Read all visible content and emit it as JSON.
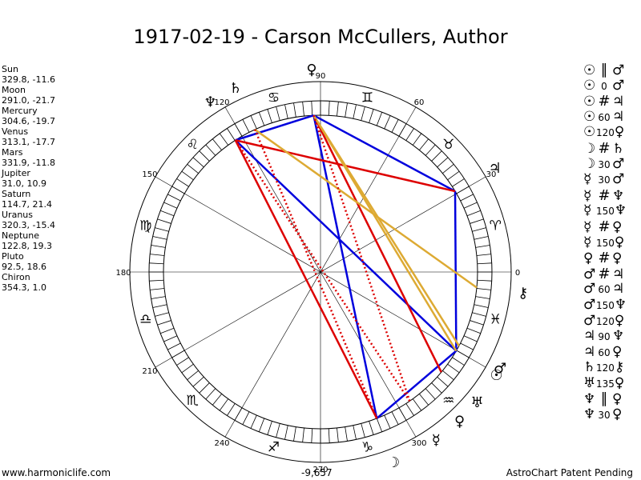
{
  "title": "1917-02-19 - Carson McCullers, Author",
  "planets": [
    {
      "name": "Sun",
      "coords": "329.8, -11.6"
    },
    {
      "name": "Moon",
      "coords": "291.0, -21.7"
    },
    {
      "name": "Mercury",
      "coords": "304.6, -19.7"
    },
    {
      "name": "Venus",
      "coords": "313.1, -17.7"
    },
    {
      "name": "Mars",
      "coords": "331.9, -11.8"
    },
    {
      "name": "Jupiter",
      "coords": "31.0, 10.9"
    },
    {
      "name": "Saturn",
      "coords": "114.7, 21.4"
    },
    {
      "name": "Uranus",
      "coords": "320.3, -15.4"
    },
    {
      "name": "Neptune",
      "coords": "122.8, 19.3"
    },
    {
      "name": "Pluto",
      "coords": "92.5, 18.6"
    },
    {
      "name": "Chiron",
      "coords": "354.3, 1.0"
    }
  ],
  "aspects": [
    {
      "p1": "☉",
      "sym": "∥",
      "num": "",
      "p2": "♂"
    },
    {
      "p1": "☉",
      "sym": "",
      "num": "0",
      "p2": "♂"
    },
    {
      "p1": "☉",
      "sym": "#",
      "num": "",
      "p2": "♃"
    },
    {
      "p1": "☉",
      "sym": "",
      "num": "60",
      "p2": "♃"
    },
    {
      "p1": "☉",
      "sym": "",
      "num": "120",
      "p2": "♀"
    },
    {
      "p1": "☽",
      "sym": "#",
      "num": "",
      "p2": "♄"
    },
    {
      "p1": "☽",
      "sym": "",
      "num": "30",
      "p2": "♂"
    },
    {
      "p1": "☿",
      "sym": "",
      "num": "30",
      "p2": "♂"
    },
    {
      "p1": "☿",
      "sym": "#",
      "num": "",
      "p2": "♆"
    },
    {
      "p1": "☿",
      "sym": "",
      "num": "150",
      "p2": "♆"
    },
    {
      "p1": "☿",
      "sym": "#",
      "num": "",
      "p2": "♀"
    },
    {
      "p1": "☿",
      "sym": "",
      "num": "150",
      "p2": "♀"
    },
    {
      "p1": "♀",
      "sym": "#",
      "num": "",
      "p2": "♀"
    },
    {
      "p1": "♂",
      "sym": "#",
      "num": "",
      "p2": "♃"
    },
    {
      "p1": "♂",
      "sym": "",
      "num": "60",
      "p2": "♃"
    },
    {
      "p1": "♂",
      "sym": "",
      "num": "150",
      "p2": "♆"
    },
    {
      "p1": "♂",
      "sym": "",
      "num": "120",
      "p2": "♀"
    },
    {
      "p1": "♃",
      "sym": "",
      "num": "90",
      "p2": "♆"
    },
    {
      "p1": "♃",
      "sym": "",
      "num": "60",
      "p2": "♀"
    },
    {
      "p1": "♄",
      "sym": "",
      "num": "120",
      "p2": "⚷"
    },
    {
      "p1": "♅",
      "sym": "",
      "num": "135",
      "p2": "♀"
    },
    {
      "p1": "♆",
      "sym": "∥",
      "num": "",
      "p2": "♀"
    },
    {
      "p1": "♆",
      "sym": "",
      "num": "30",
      "p2": "♀"
    }
  ],
  "degree_labels": [
    "0",
    "30",
    "60",
    "90",
    "120",
    "150",
    "180",
    "210",
    "240",
    "270",
    "300"
  ],
  "score": "-9,657",
  "footer": {
    "left": "www.harmoniclife.com",
    "right": "AstroChart Patent Pending"
  },
  "colors": {
    "blue": "#0000dd",
    "red": "#dd0000",
    "gold": "#ddaa33"
  }
}
